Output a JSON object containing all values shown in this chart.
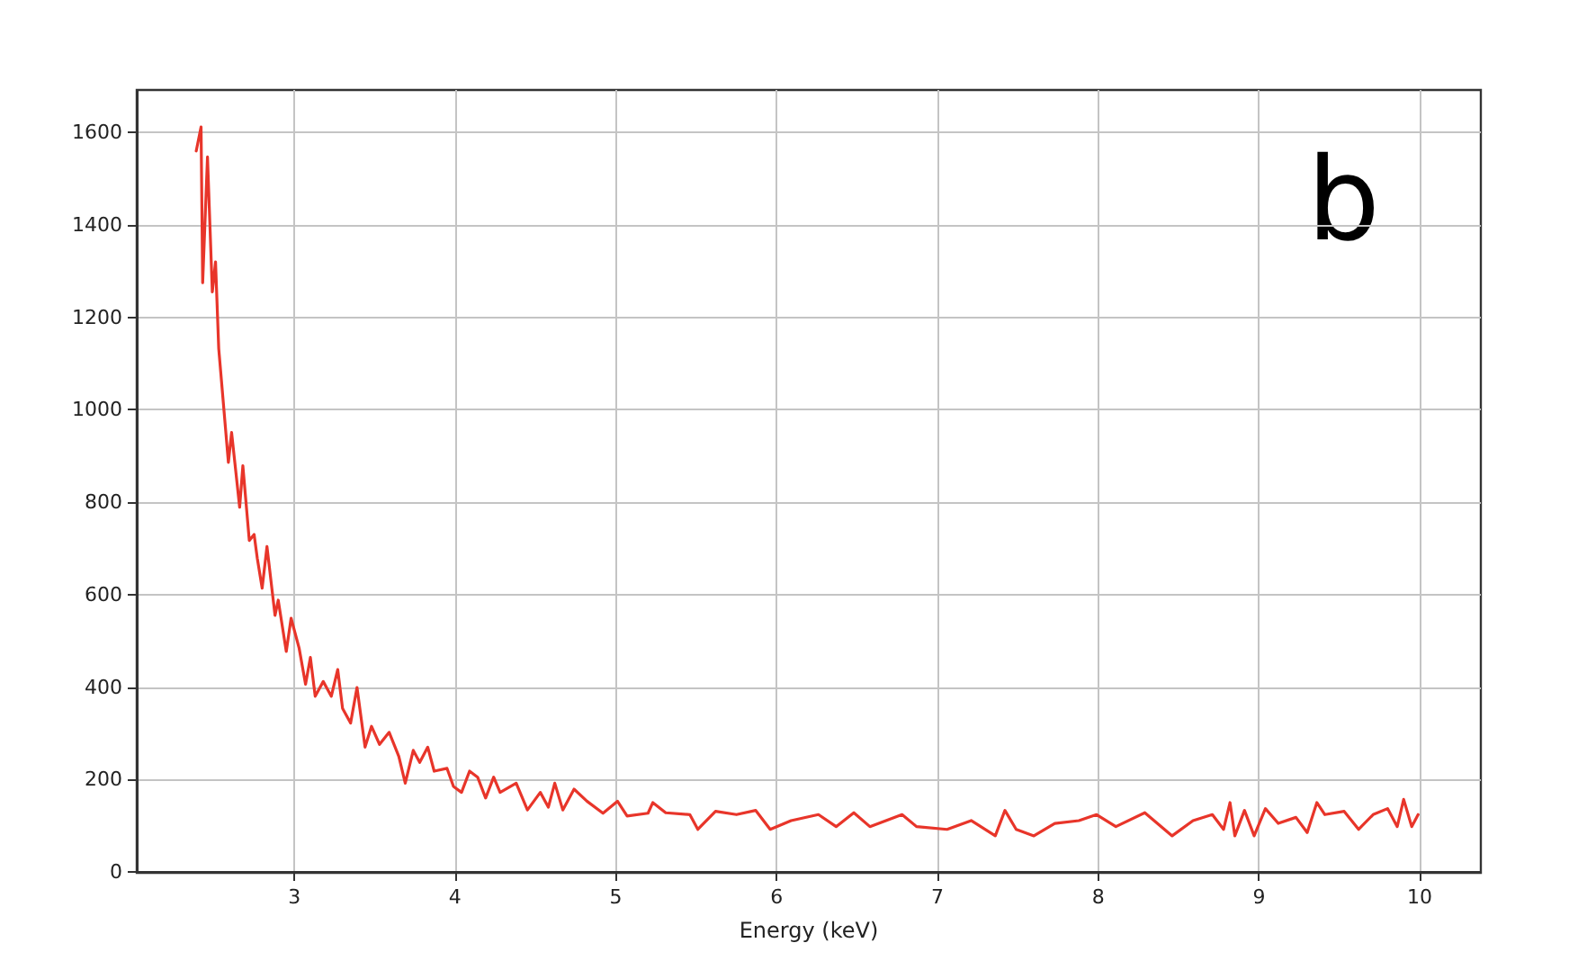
{
  "chart_data": {
    "type": "line",
    "xlabel": "Energy (keV)",
    "annotations": [
      "b"
    ],
    "grid": true,
    "marker": "none",
    "line_style": "solid",
    "xlim": [
      2.02,
      10.38
    ],
    "xticks": [
      3,
      4,
      5,
      6,
      7,
      8,
      9,
      10
    ],
    "ylim": [
      -2,
      1692
    ],
    "yticks": [
      0,
      200,
      400,
      600,
      800,
      1000,
      1200,
      1400,
      1600
    ],
    "series": [
      {
        "color": "#e8352a",
        "x": [
          2.39,
          2.42,
          2.43,
          2.46,
          2.49,
          2.51,
          2.53,
          2.59,
          2.61,
          2.63,
          2.66,
          2.68,
          2.72,
          2.75,
          2.77,
          2.8,
          2.83,
          2.88,
          2.9,
          2.95,
          2.98,
          3.03,
          3.07,
          3.1,
          3.13,
          3.18,
          3.23,
          3.27,
          3.3,
          3.35,
          3.39,
          3.44,
          3.48,
          3.53,
          3.59,
          3.65,
          3.69,
          3.74,
          3.78,
          3.83,
          3.87,
          3.95,
          3.99,
          4.04,
          4.09,
          4.14,
          4.19,
          4.24,
          4.28,
          4.38,
          4.45,
          4.53,
          4.58,
          4.62,
          4.67,
          4.74,
          4.82,
          4.92,
          5.01,
          5.07,
          5.2,
          5.23,
          5.31,
          5.46,
          5.51,
          5.62,
          5.75,
          5.87,
          5.96,
          6.09,
          6.26,
          6.37,
          6.48,
          6.58,
          6.78,
          6.87,
          7.06,
          7.21,
          7.36,
          7.42,
          7.49,
          7.6,
          7.73,
          7.88,
          7.99,
          8.11,
          8.29,
          8.46,
          8.59,
          8.71,
          8.78,
          8.82,
          8.85,
          8.91,
          8.97,
          9.04,
          9.12,
          9.23,
          9.3,
          9.36,
          9.41,
          9.53,
          9.62,
          9.71,
          9.8,
          9.86,
          9.9,
          9.95,
          9.99
        ],
        "values": [
          1560,
          1612,
          1275,
          1547,
          1255,
          1320,
          1132,
          886,
          951,
          886,
          789,
          879,
          717,
          730,
          678,
          614,
          704,
          555,
          588,
          477,
          549,
          484,
          406,
          464,
          380,
          412,
          380,
          438,
          354,
          322,
          399,
          270,
          315,
          276,
          302,
          250,
          192,
          263,
          237,
          270,
          218,
          224,
          185,
          172,
          218,
          205,
          160,
          205,
          172,
          192,
          134,
          172,
          140,
          192,
          134,
          179,
          153,
          127,
          153,
          121,
          127,
          150,
          128,
          124,
          92,
          131,
          124,
          133,
          92,
          111,
          124,
          98,
          128,
          98,
          124,
          98,
          92,
          111,
          78,
          133,
          92,
          78,
          105,
          111,
          124,
          98,
          128,
          78,
          111,
          124,
          92,
          150,
          78,
          133,
          78,
          137,
          105,
          118,
          85,
          150,
          124,
          131,
          92,
          124,
          137,
          98,
          157,
          98,
          124
        ]
      }
    ]
  }
}
